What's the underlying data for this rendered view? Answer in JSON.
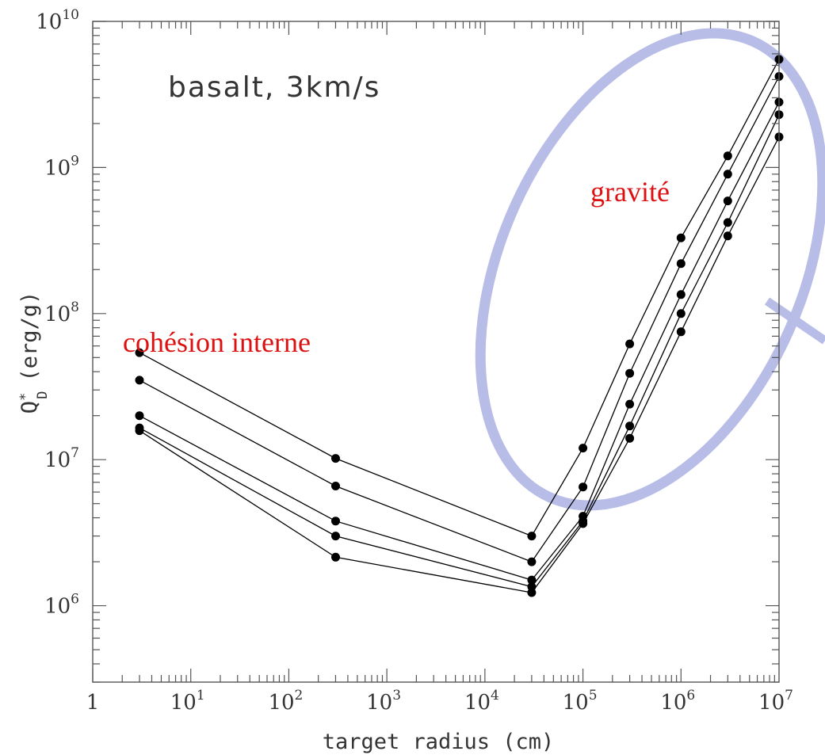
{
  "chart_data": {
    "type": "line",
    "title": "basalt, 3km/s",
    "xlabel": "target radius (cm)",
    "ylabel": "Q",
    "ylabel_subscript": "D",
    "ylabel_superscript": "*",
    "ylabel_units": "(erg/g)",
    "x_scale": "log",
    "y_scale": "log",
    "xlim": [
      1,
      10000000
    ],
    "ylim": [
      300000,
      10000000000
    ],
    "x_ticks": [
      {
        "base": "1",
        "exp": ""
      },
      {
        "base": "10",
        "exp": "1"
      },
      {
        "base": "10",
        "exp": "2"
      },
      {
        "base": "10",
        "exp": "3"
      },
      {
        "base": "10",
        "exp": "4"
      },
      {
        "base": "10",
        "exp": "5"
      },
      {
        "base": "10",
        "exp": "6"
      },
      {
        "base": "10",
        "exp": "7"
      }
    ],
    "y_ticks": [
      {
        "base": "10",
        "exp": "6"
      },
      {
        "base": "10",
        "exp": "7"
      },
      {
        "base": "10",
        "exp": "8"
      },
      {
        "base": "10",
        "exp": "9"
      },
      {
        "base": "10",
        "exp": "10"
      }
    ],
    "x": [
      3,
      300,
      30000,
      100000,
      300000,
      1000000,
      3000000,
      10000000
    ],
    "series": [
      {
        "values": [
          54000000,
          10200000,
          3000000,
          12000000,
          62000000,
          330000000,
          1200000000,
          5500000000
        ]
      },
      {
        "values": [
          35000000,
          6600000,
          2000000,
          6500000,
          39000000,
          220000000,
          900000000,
          4200000000
        ]
      },
      {
        "values": [
          20000000,
          3800000,
          1500000,
          4100000,
          24000000,
          135000000,
          590000000,
          2800000000
        ]
      },
      {
        "values": [
          16500000,
          3000000,
          1350000,
          3800000,
          17000000,
          100000000,
          420000000,
          2300000000
        ]
      },
      {
        "values": [
          15800000,
          2150000,
          1230000,
          3650000,
          14000000,
          75000000,
          340000000,
          1620000000
        ]
      }
    ],
    "annotations": [
      "cohésion interne",
      "gravité"
    ],
    "highlight_color": "#b8bde8",
    "annotation_color": "#dd1111",
    "grid": false
  }
}
